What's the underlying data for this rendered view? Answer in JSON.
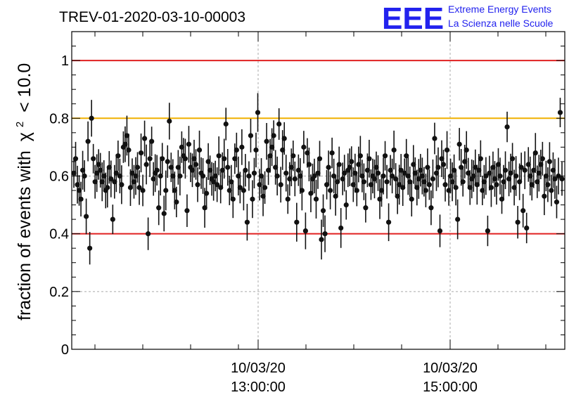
{
  "chart_data": {
    "type": "scatter",
    "title": "TREV-01-2020-03-10-00003",
    "ylabel_main": "fraction of events with",
    "ylabel_symbol": "χ",
    "ylabel_superscript": "2",
    "ylabel_tail": "< 10.0",
    "ylim": [
      0,
      1.1
    ],
    "yticks": [
      "0",
      "0.2",
      "0.4",
      "0.6",
      "0.8",
      "1"
    ],
    "xticks": [
      {
        "date": "10/03/20",
        "time": "13:00:00"
      },
      {
        "date": "10/03/20",
        "time": "15:00:00"
      }
    ],
    "grid": true,
    "reference_lines": [
      {
        "y": 1.0,
        "color": "#e02020"
      },
      {
        "y": 0.8,
        "color": "#f0b000"
      },
      {
        "y": 0.4,
        "color": "#e02020"
      }
    ],
    "marker_color": "#111111",
    "typical_error": 0.06,
    "x_range": [
      0,
      1
    ],
    "values": [
      0.61,
      0.66,
      0.57,
      0.55,
      0.52,
      0.62,
      0.6,
      0.46,
      0.72,
      0.35,
      0.8,
      0.66,
      0.58,
      0.61,
      0.64,
      0.62,
      0.58,
      0.6,
      0.55,
      0.56,
      0.63,
      0.59,
      0.45,
      0.58,
      0.61,
      0.67,
      0.6,
      0.57,
      0.7,
      0.71,
      0.74,
      0.69,
      0.56,
      0.61,
      0.58,
      0.6,
      0.63,
      0.56,
      0.68,
      0.55,
      0.73,
      0.64,
      0.4,
      0.66,
      0.72,
      0.59,
      0.61,
      0.62,
      0.49,
      0.6,
      0.66,
      0.47,
      0.55,
      0.65,
      0.79,
      0.63,
      0.6,
      0.55,
      0.51,
      0.63,
      0.6,
      0.7,
      0.67,
      0.66,
      0.48,
      0.71,
      0.63,
      0.62,
      0.66,
      0.64,
      0.57,
      0.69,
      0.61,
      0.6,
      0.49,
      0.54,
      0.65,
      0.62,
      0.59,
      0.58,
      0.6,
      0.57,
      0.67,
      0.56,
      0.62,
      0.66,
      0.78,
      0.63,
      0.55,
      0.58,
      0.52,
      0.66,
      0.69,
      0.6,
      0.56,
      0.7,
      0.55,
      0.62,
      0.44,
      0.6,
      0.74,
      0.52,
      0.61,
      0.69,
      0.82,
      0.57,
      0.6,
      0.53,
      0.56,
      0.72,
      0.62,
      0.67,
      0.7,
      0.74,
      0.63,
      0.6,
      0.78,
      0.57,
      0.69,
      0.73,
      0.61,
      0.52,
      0.59,
      0.63,
      0.67,
      0.59,
      0.44,
      0.62,
      0.6,
      0.55,
      0.7,
      0.41,
      0.68,
      0.64,
      0.54,
      0.59,
      0.6,
      0.52,
      0.61,
      0.66,
      0.38,
      0.48,
      0.4,
      0.57,
      0.63,
      0.55,
      0.68,
      0.6,
      0.53,
      0.58,
      0.64,
      0.42,
      0.59,
      0.61,
      0.5,
      0.62,
      0.63,
      0.65,
      0.57,
      0.61,
      0.55,
      0.64,
      0.67,
      0.6,
      0.58,
      0.49,
      0.62,
      0.66,
      0.57,
      0.6,
      0.59,
      0.63,
      0.61,
      0.52,
      0.55,
      0.6,
      0.67,
      0.58,
      0.44,
      0.62,
      0.6,
      0.69,
      0.59,
      0.53,
      0.57,
      0.62,
      0.56,
      0.61,
      0.67,
      0.6,
      0.58,
      0.52,
      0.64,
      0.61,
      0.56,
      0.59,
      0.62,
      0.6,
      0.58,
      0.55,
      0.63,
      0.57,
      0.49,
      0.59,
      0.73,
      0.61,
      0.63,
      0.41,
      0.66,
      0.64,
      0.57,
      0.69,
      0.55,
      0.6,
      0.58,
      0.62,
      0.56,
      0.45,
      0.71,
      0.63,
      0.58,
      0.65,
      0.69,
      0.61,
      0.56,
      0.59,
      0.6,
      0.63,
      0.57,
      0.62,
      0.66,
      0.55,
      0.58,
      0.6,
      0.41,
      0.61,
      0.56,
      0.63,
      0.59,
      0.57,
      0.64,
      0.6,
      0.52,
      0.58,
      0.62,
      0.77,
      0.59,
      0.61,
      0.66,
      0.56,
      0.6,
      0.44,
      0.58,
      0.63,
      0.48,
      0.62,
      0.42,
      0.64,
      0.6,
      0.57,
      0.62,
      0.68,
      0.58,
      0.61,
      0.64,
      0.66,
      0.53,
      0.6,
      0.57,
      0.65,
      0.55,
      0.62,
      0.59,
      0.51,
      0.6,
      0.82,
      0.59
    ]
  },
  "logo": {
    "mark": "EEE",
    "line1": "Extreme Energy Events",
    "line2": "La Scienza nelle Scuole"
  }
}
